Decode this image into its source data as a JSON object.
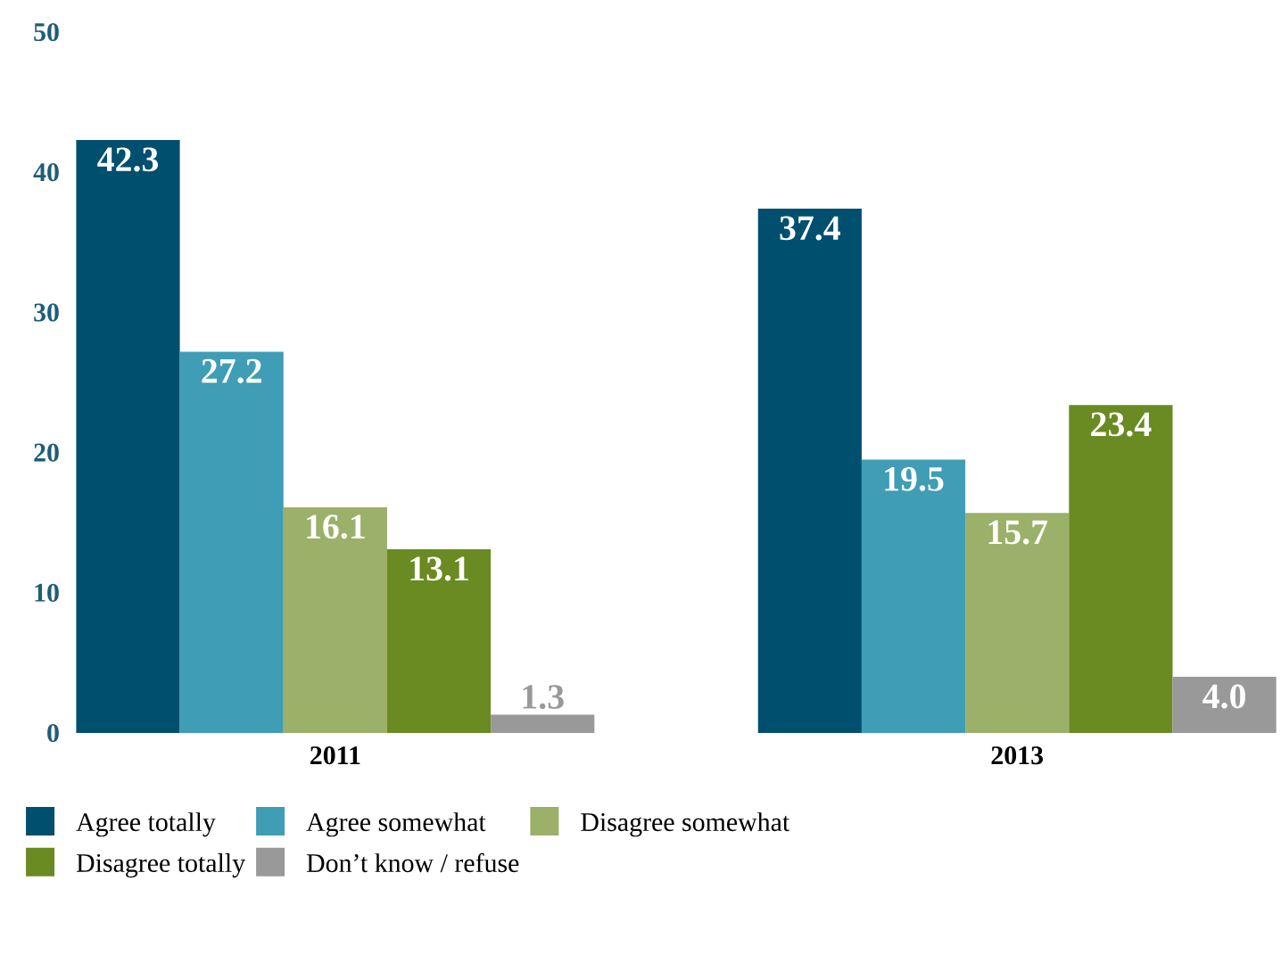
{
  "chart_data": {
    "type": "bar",
    "categories": [
      "2011",
      "2013"
    ],
    "series": [
      {
        "name": "Agree totally",
        "color": "#004f6e",
        "values": [
          42.3,
          37.4
        ],
        "value_labels": [
          "42.3",
          "37.4"
        ]
      },
      {
        "name": "Agree somewhat",
        "color": "#3f9db5",
        "values": [
          27.2,
          19.5
        ],
        "value_labels": [
          "27.2",
          "19.5"
        ]
      },
      {
        "name": "Disagree somewhat",
        "color": "#9bb068",
        "values": [
          16.1,
          15.7
        ],
        "value_labels": [
          "16.1",
          "15.7"
        ]
      },
      {
        "name": "Disagree totally",
        "color": "#6a8a22",
        "values": [
          13.1,
          23.4
        ],
        "value_labels": [
          "13.1",
          "23.4"
        ]
      },
      {
        "name": "Don’t know / refuse",
        "color": "#999999",
        "values": [
          1.3,
          4.0
        ],
        "value_labels": [
          "1.3",
          "4.0"
        ]
      }
    ],
    "ylim": [
      0,
      50
    ],
    "yticks": [
      0,
      10,
      20,
      30,
      40,
      50
    ],
    "legend": "bottom",
    "grid": false
  }
}
